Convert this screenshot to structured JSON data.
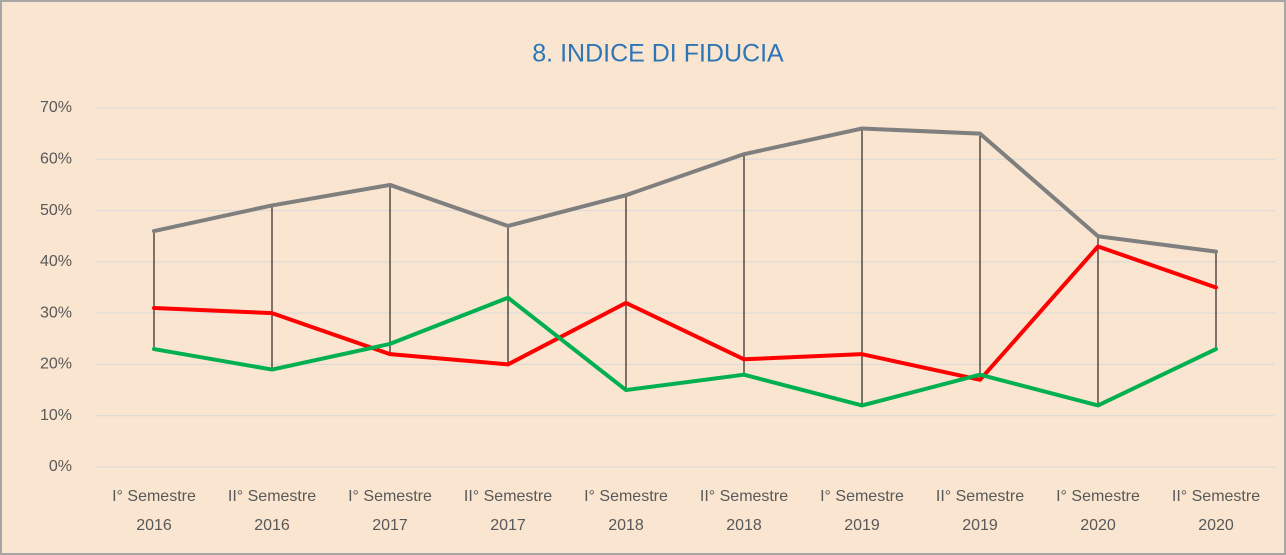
{
  "chart_data": {
    "type": "line",
    "title": "8. INDICE DI FIDUCIA",
    "categories": [
      [
        "I° Semestre",
        "2016"
      ],
      [
        "II° Semestre",
        "2016"
      ],
      [
        "I° Semestre",
        "2017"
      ],
      [
        "II° Semestre",
        "2017"
      ],
      [
        "I° Semestre",
        "2018"
      ],
      [
        "II° Semestre",
        "2018"
      ],
      [
        "I° Semestre",
        "2019"
      ],
      [
        "II° Semestre",
        "2019"
      ],
      [
        "I° Semestre",
        "2020"
      ],
      [
        "II° Semestre",
        "2020"
      ]
    ],
    "series": [
      {
        "color": "#7f7f7f",
        "values": [
          46,
          51,
          55,
          47,
          53,
          61,
          66,
          65,
          45,
          42
        ]
      },
      {
        "color": "#ff0000",
        "values": [
          31,
          30,
          22,
          20,
          32,
          21,
          22,
          17,
          43,
          35
        ]
      },
      {
        "color": "#00b050",
        "values": [
          23,
          19,
          24,
          33,
          15,
          18,
          12,
          18,
          12,
          23
        ]
      }
    ],
    "ylim": [
      0,
      70
    ],
    "yticks": [
      {
        "value": 0,
        "label": "0%"
      },
      {
        "value": 10,
        "label": "10%"
      },
      {
        "value": 20,
        "label": "20%"
      },
      {
        "value": 30,
        "label": "30%"
      },
      {
        "value": 40,
        "label": "40%"
      },
      {
        "value": 50,
        "label": "50%"
      },
      {
        "value": 60,
        "label": "60%"
      },
      {
        "value": 70,
        "label": "70%"
      }
    ],
    "grid": true,
    "high_low_lines": true
  }
}
